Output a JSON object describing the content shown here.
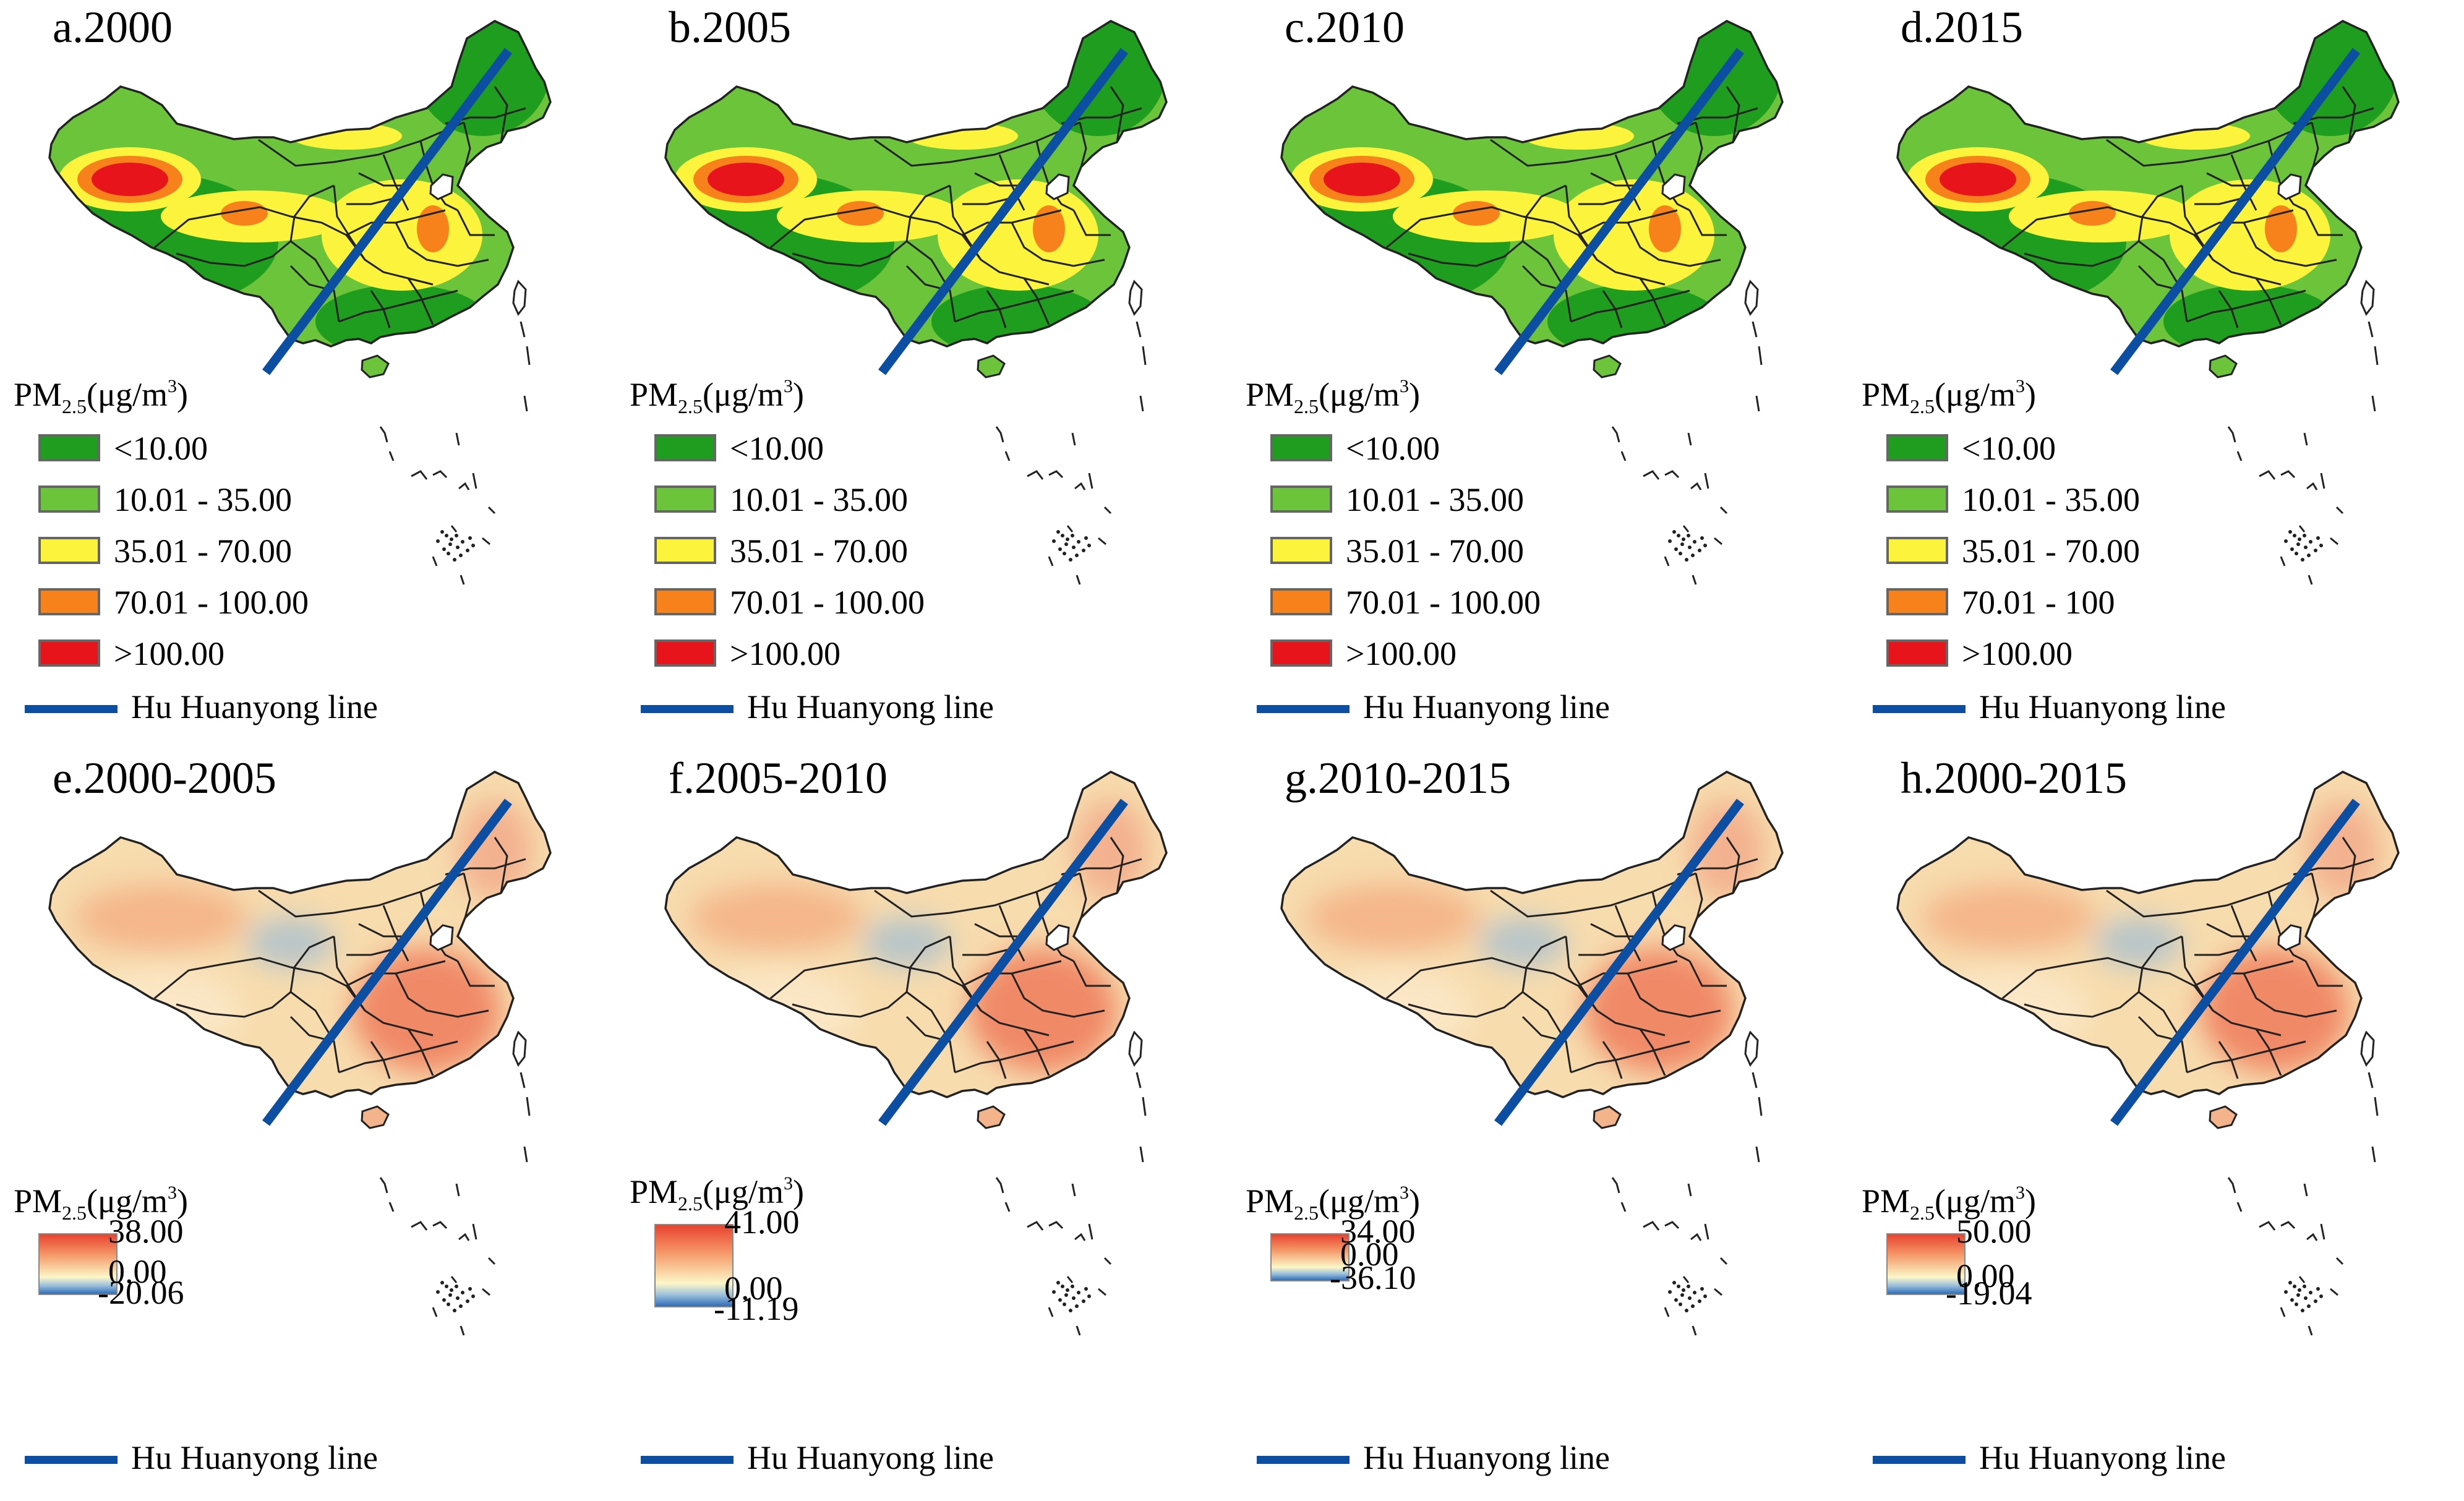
{
  "figure": {
    "legend_title": {
      "main": "PM",
      "sub": "2.5",
      "unit": "(μg/m",
      "sup": "3",
      "close": ")"
    },
    "boundary_line_label": "Hu Huanyong line",
    "colors": {
      "class_lt10": "#1e9d1e",
      "class_10_35": "#6cc43a",
      "class_35_70": "#fcf43c",
      "class_70_100": "#f7821c",
      "class_gt100": "#e8141c",
      "change_high": "#e8432f",
      "change_mid": "#fcf7c8",
      "change_low": "#2f6eb8",
      "hu_line": "#0b4ea2"
    }
  },
  "panels": [
    {
      "id": "a",
      "title": "a.2000",
      "type": "classified",
      "classes": [
        "<10.00",
        "10.01 - 35.00",
        "35.01 - 70.00",
        "70.01 - 100.00",
        ">100.00"
      ]
    },
    {
      "id": "b",
      "title": "b.2005",
      "type": "classified",
      "classes": [
        "<10.00",
        "10.01 - 35.00",
        "35.01 - 70.00",
        "70.01 - 100.00",
        ">100.00"
      ]
    },
    {
      "id": "c",
      "title": "c.2010",
      "type": "classified",
      "classes": [
        "<10.00",
        "10.01 - 35.00",
        "35.01 - 70.00",
        "70.01 - 100.00",
        ">100.00"
      ]
    },
    {
      "id": "d",
      "title": "d.2015",
      "type": "classified",
      "classes": [
        "<10.00",
        "10.01 - 35.00",
        "35.01 - 70.00",
        "70.01 - 100",
        ">100.00"
      ]
    },
    {
      "id": "e",
      "title": "e.2000-2005",
      "type": "change",
      "max": "38.00",
      "mid": "0.00",
      "min": "-20.06"
    },
    {
      "id": "f",
      "title": "f.2005-2010",
      "type": "change",
      "max": "41.00",
      "mid": "0.00",
      "min": "-11.19"
    },
    {
      "id": "g",
      "title": "g.2010-2015",
      "type": "change",
      "max": "34.00",
      "mid": "0.00",
      "min": "-36.10"
    },
    {
      "id": "h",
      "title": "h.2000-2015",
      "type": "change",
      "max": "50.00",
      "mid": "0.00",
      "min": "-19.04"
    }
  ]
}
